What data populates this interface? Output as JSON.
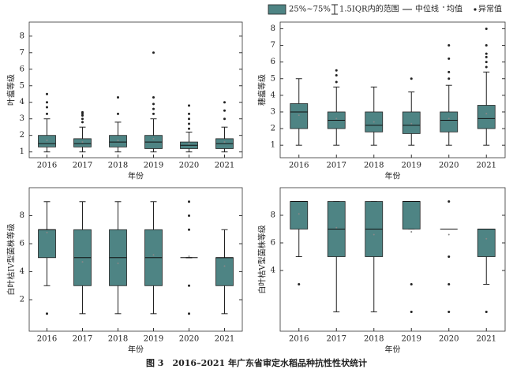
{
  "legend": [
    "25%~75%",
    "1.5IQR内的范围",
    "中位线",
    "均值",
    "异常值"
  ],
  "caption": "图 3　2016–2021 年广东省审定水稻品种抗性性状统计",
  "chart_data": [
    {
      "type": "box",
      "ylabel": "叶瘟等级",
      "xlabel": "年份",
      "color": "#4e8484",
      "categories": [
        "2016",
        "2017",
        "2018",
        "2019",
        "2020",
        "2021"
      ],
      "ylim": [
        0.65,
        8.85
      ],
      "yticks": [
        1,
        2,
        3,
        4,
        5,
        6,
        7,
        8
      ],
      "boxes": [
        {
          "min": 1,
          "q1": 1.3,
          "median": 1.5,
          "q3": 2,
          "max": 3,
          "mean": 1.7,
          "outliers": [
            3.3,
            3.7,
            4,
            4.5
          ]
        },
        {
          "min": 1,
          "q1": 1.3,
          "median": 1.5,
          "q3": 1.8,
          "max": 2.5,
          "mean": 1.6,
          "outliers": [
            2.8,
            3,
            3.2,
            3.3,
            3.4
          ]
        },
        {
          "min": 1,
          "q1": 1.3,
          "median": 1.6,
          "q3": 2,
          "max": 2.8,
          "mean": 1.7,
          "outliers": [
            3.3,
            4.3
          ]
        },
        {
          "min": 1,
          "q1": 1.2,
          "median": 1.6,
          "q3": 2,
          "max": 3,
          "mean": 1.8,
          "outliers": [
            3.3,
            3.6,
            3.9,
            4.3,
            7
          ]
        },
        {
          "min": 1,
          "q1": 1.2,
          "median": 1.4,
          "q3": 1.6,
          "max": 2.2,
          "mean": 1.5,
          "outliers": [
            2.4,
            2.7,
            3,
            3.3,
            3.8
          ]
        },
        {
          "min": 1,
          "q1": 1.2,
          "median": 1.5,
          "q3": 1.8,
          "max": 2.5,
          "mean": 1.6,
          "outliers": [
            3,
            3.5,
            4
          ]
        }
      ]
    },
    {
      "type": "box",
      "ylabel": "穗瘟等级",
      "xlabel": "年份",
      "color": "#4e8484",
      "categories": [
        "2016",
        "2017",
        "2018",
        "2019",
        "2020",
        "2021"
      ],
      "ylim": [
        0.25,
        8.4
      ],
      "yticks": [
        1,
        2,
        3,
        4,
        5,
        6,
        7,
        8
      ],
      "boxes": [
        {
          "min": 1,
          "q1": 2,
          "median": 3,
          "q3": 3.5,
          "max": 5,
          "mean": 2.8,
          "outliers": []
        },
        {
          "min": 1,
          "q1": 2,
          "median": 2.5,
          "q3": 3,
          "max": 4.5,
          "mean": 2.6,
          "outliers": [
            4.8,
            5.2,
            5.5
          ]
        },
        {
          "min": 1,
          "q1": 1.8,
          "median": 2.2,
          "q3": 3,
          "max": 4.5,
          "mean": 2.4,
          "outliers": []
        },
        {
          "min": 1,
          "q1": 1.7,
          "median": 2.2,
          "q3": 3,
          "max": 4.2,
          "mean": 2.3,
          "outliers": [
            5
          ]
        },
        {
          "min": 1,
          "q1": 1.8,
          "median": 2.5,
          "q3": 3,
          "max": 4.6,
          "mean": 2.6,
          "outliers": [
            5,
            5.4,
            6.2,
            7
          ]
        },
        {
          "min": 1,
          "q1": 2,
          "median": 2.6,
          "q3": 3.4,
          "max": 5.4,
          "mean": 2.9,
          "outliers": [
            5.7,
            6,
            6.3,
            6.5,
            7,
            8
          ]
        }
      ]
    },
    {
      "type": "box",
      "ylabel": "白叶枯IV型菌株等级",
      "xlabel": "年份",
      "color": "#4e8484",
      "categories": [
        "2016",
        "2017",
        "2018",
        "2019",
        "2020",
        "2021"
      ],
      "ylim": [
        -0.25,
        10
      ],
      "yticks": [
        2,
        4,
        6,
        8
      ],
      "boxes": [
        {
          "min": 3,
          "q1": 5,
          "median": 7,
          "q3": 7,
          "max": 9,
          "mean": 6.8,
          "outliers": [
            1
          ]
        },
        {
          "min": 1,
          "q1": 3,
          "median": 5,
          "q3": 7,
          "max": 9,
          "mean": 4.7,
          "outliers": []
        },
        {
          "min": 1,
          "q1": 3,
          "median": 5,
          "q3": 7,
          "max": 9,
          "mean": 4.6,
          "outliers": []
        },
        {
          "min": 1,
          "q1": 3,
          "median": 5,
          "q3": 7,
          "max": 9,
          "mean": 5.2,
          "outliers": []
        },
        {
          "min": 5,
          "q1": 5,
          "median": 5,
          "q3": 5,
          "max": 5,
          "mean": 5.1,
          "outliers": [
            9,
            8,
            7,
            3,
            1
          ]
        },
        {
          "min": 1,
          "q1": 3,
          "median": 5,
          "q3": 5,
          "max": 7,
          "mean": 4.4,
          "outliers": []
        }
      ]
    },
    {
      "type": "box",
      "ylabel": "白叶枯V型菌株等级",
      "xlabel": "年份",
      "color": "#4e8484",
      "categories": [
        "2016",
        "2017",
        "2018",
        "2019",
        "2020",
        "2021"
      ],
      "ylim": [
        -0.4,
        10
      ],
      "yticks": [
        4,
        6,
        8
      ],
      "boxes": [
        {
          "min": 5,
          "q1": 7,
          "median": 9,
          "q3": 9,
          "max": 9,
          "mean": 8.1,
          "outliers": [
            3
          ]
        },
        {
          "min": 1,
          "q1": 5,
          "median": 7,
          "q3": 9,
          "max": 9,
          "mean": 7.1,
          "outliers": []
        },
        {
          "min": 1,
          "q1": 5,
          "median": 7,
          "q3": 9,
          "max": 9,
          "mean": 6.6,
          "outliers": []
        },
        {
          "min": 7,
          "q1": 7,
          "median": 9,
          "q3": 9,
          "max": 9,
          "mean": 6.8,
          "outliers": [
            3,
            1
          ]
        },
        {
          "min": 7,
          "q1": 7,
          "median": 7,
          "q3": 7,
          "max": 7,
          "mean": 6.6,
          "outliers": [
            9,
            5,
            3,
            1
          ]
        },
        {
          "min": 3,
          "q1": 5,
          "median": 7,
          "q3": 7,
          "max": 7,
          "mean": 6.3,
          "outliers": [
            1
          ]
        }
      ]
    }
  ]
}
